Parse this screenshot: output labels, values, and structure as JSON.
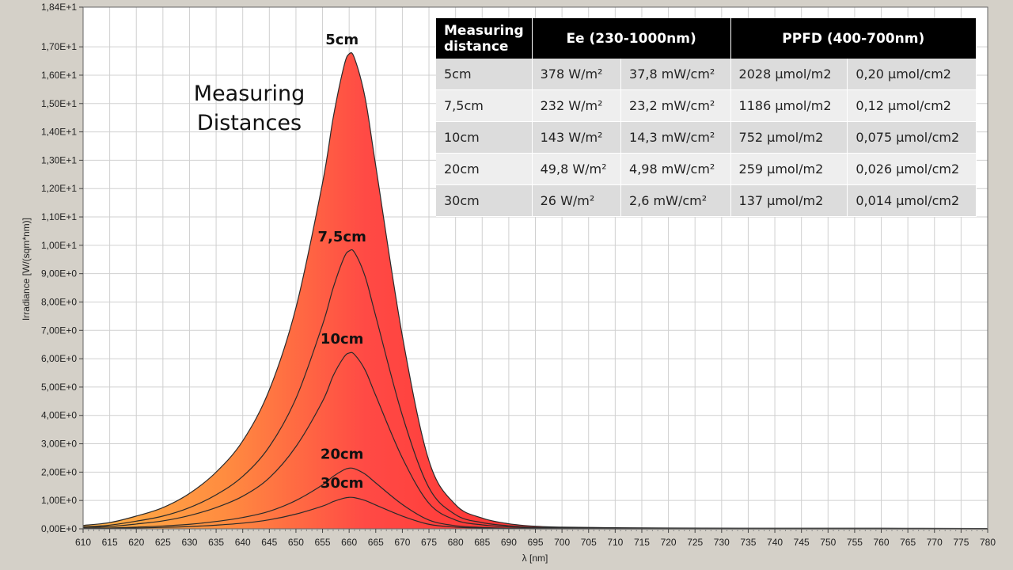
{
  "chart_data": {
    "type": "area",
    "xlabel": "λ [nm]",
    "ylabel": "Irradiance [W/(sqm*nm)]",
    "xlim": [
      610,
      780
    ],
    "ylim": [
      0,
      18.4
    ],
    "x_ticks": [
      "610",
      "615",
      "620",
      "625",
      "630",
      "635",
      "640",
      "645",
      "650",
      "655",
      "660",
      "665",
      "670",
      "675",
      "680",
      "685",
      "690",
      "695",
      "700",
      "705",
      "710",
      "715",
      "720",
      "725",
      "730",
      "735",
      "740",
      "745",
      "750",
      "755",
      "760",
      "765",
      "770",
      "775",
      "780"
    ],
    "y_ticks": [
      "0,00E+0",
      "1,00E+0",
      "2,00E+0",
      "3,00E+0",
      "4,00E+0",
      "5,00E+0",
      "6,00E+0",
      "7,00E+0",
      "8,00E+0",
      "9,00E+0",
      "1,00E+1",
      "1,10E+1",
      "1,20E+1",
      "1,30E+1",
      "1,40E+1",
      "1,50E+1",
      "1,60E+1",
      "1,70E+1",
      "1,84E+1"
    ],
    "grid": true,
    "annotation": [
      "Measuring",
      "Distances"
    ],
    "x": [
      610,
      615,
      620,
      625,
      630,
      635,
      640,
      645,
      650,
      655,
      657,
      659,
      660,
      661,
      663,
      665,
      670,
      675,
      680,
      685,
      690,
      695,
      700,
      710,
      720,
      740,
      760,
      780
    ],
    "series": [
      {
        "name": "5cm",
        "values": [
          0.12,
          0.22,
          0.45,
          0.75,
          1.25,
          2.0,
          3.1,
          4.9,
          7.8,
          12.2,
          14.5,
          16.3,
          16.75,
          16.6,
          15.2,
          12.8,
          6.8,
          2.4,
          0.85,
          0.38,
          0.18,
          0.09,
          0.06,
          0.04,
          0.03,
          0.02,
          0.02,
          0.01
        ]
      },
      {
        "name": "7,5cm",
        "values": [
          0.07,
          0.13,
          0.27,
          0.45,
          0.75,
          1.2,
          1.85,
          2.9,
          4.6,
          7.2,
          8.5,
          9.55,
          9.8,
          9.75,
          8.9,
          7.5,
          4.0,
          1.45,
          0.5,
          0.22,
          0.11,
          0.05,
          0.04,
          0.02,
          0.02,
          0.01,
          0.01,
          0.01
        ]
      },
      {
        "name": "10cm",
        "values": [
          0.045,
          0.08,
          0.17,
          0.28,
          0.47,
          0.75,
          1.15,
          1.8,
          2.9,
          4.5,
          5.4,
          6.05,
          6.2,
          6.15,
          5.6,
          4.7,
          2.5,
          0.9,
          0.31,
          0.14,
          0.07,
          0.03,
          0.02,
          0.01,
          0.01,
          0.01,
          0.01,
          0.0
        ]
      },
      {
        "name": "20cm",
        "values": [
          0.016,
          0.03,
          0.06,
          0.1,
          0.16,
          0.26,
          0.4,
          0.62,
          1.0,
          1.55,
          1.85,
          2.08,
          2.14,
          2.12,
          1.93,
          1.62,
          0.86,
          0.31,
          0.11,
          0.05,
          0.02,
          0.01,
          0.01,
          0.0,
          0.0,
          0.0,
          0.0,
          0.0
        ]
      },
      {
        "name": "30cm",
        "values": [
          0.008,
          0.015,
          0.03,
          0.05,
          0.08,
          0.13,
          0.2,
          0.32,
          0.52,
          0.8,
          0.96,
          1.08,
          1.11,
          1.1,
          1.0,
          0.84,
          0.45,
          0.16,
          0.06,
          0.03,
          0.01,
          0.0,
          0.0,
          0.0,
          0.0,
          0.0,
          0.0,
          0.0
        ]
      }
    ],
    "table": {
      "headers": [
        "Measuring distance",
        "Ee  (230-1000nm)",
        "PPFD (400-700nm)"
      ],
      "rows": [
        [
          "5cm",
          "378 W/m²",
          "37,8 mW/cm²",
          "2028 µmol/m2",
          "0,20 µmol/cm2"
        ],
        [
          "7,5cm",
          "232 W/m²",
          "23,2 mW/cm²",
          "1186 µmol/m2",
          "0,12 µmol/cm2"
        ],
        [
          "10cm",
          "143 W/m²",
          "14,3 mW/cm²",
          "752 µmol/m2",
          "0,075 µmol/cm2"
        ],
        [
          "20cm",
          "49,8 W/m²",
          "4,98 mW/cm²",
          "259 µmol/m2",
          "0,026 µmol/cm2"
        ],
        [
          "30cm",
          "26 W/m²",
          "2,6 mW/cm²",
          "137 µmol/m2",
          "0,014 µmol/cm2"
        ]
      ]
    }
  }
}
